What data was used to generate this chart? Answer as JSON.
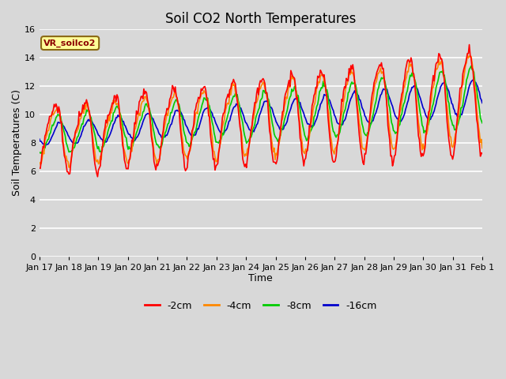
{
  "title": "Soil CO2 North Temperatures",
  "xlabel": "Time",
  "ylabel": "Soil Temperatures (C)",
  "legend_label": "VR_soilco2",
  "series_labels": [
    "-2cm",
    "-4cm",
    "-8cm",
    "-16cm"
  ],
  "series_colors": [
    "#ff0000",
    "#ff8800",
    "#00cc00",
    "#0000cc"
  ],
  "ylim": [
    0,
    16
  ],
  "yticks": [
    0,
    2,
    4,
    6,
    8,
    10,
    12,
    14,
    16
  ],
  "x_tick_labels": [
    "Jan 17",
    "Jan 18",
    "Jan 19",
    "Jan 20",
    "Jan 21",
    "Jan 22",
    "Jan 23",
    "Jan 24",
    "Jan 25",
    "Jan 26",
    "Jan 27",
    "Jan 28",
    "Jan 29",
    "Jan 30",
    "Jan 31",
    "Feb 1"
  ],
  "background_color": "#d8d8d8",
  "plot_background": "#d8d8d8",
  "grid_color": "#ffffff",
  "title_fontsize": 12,
  "axis_label_fontsize": 9,
  "tick_fontsize": 8,
  "annotation_box_color": "#ffff99",
  "annotation_text_color": "#8b0000",
  "figsize": [
    6.4,
    4.8
  ],
  "dpi": 100
}
